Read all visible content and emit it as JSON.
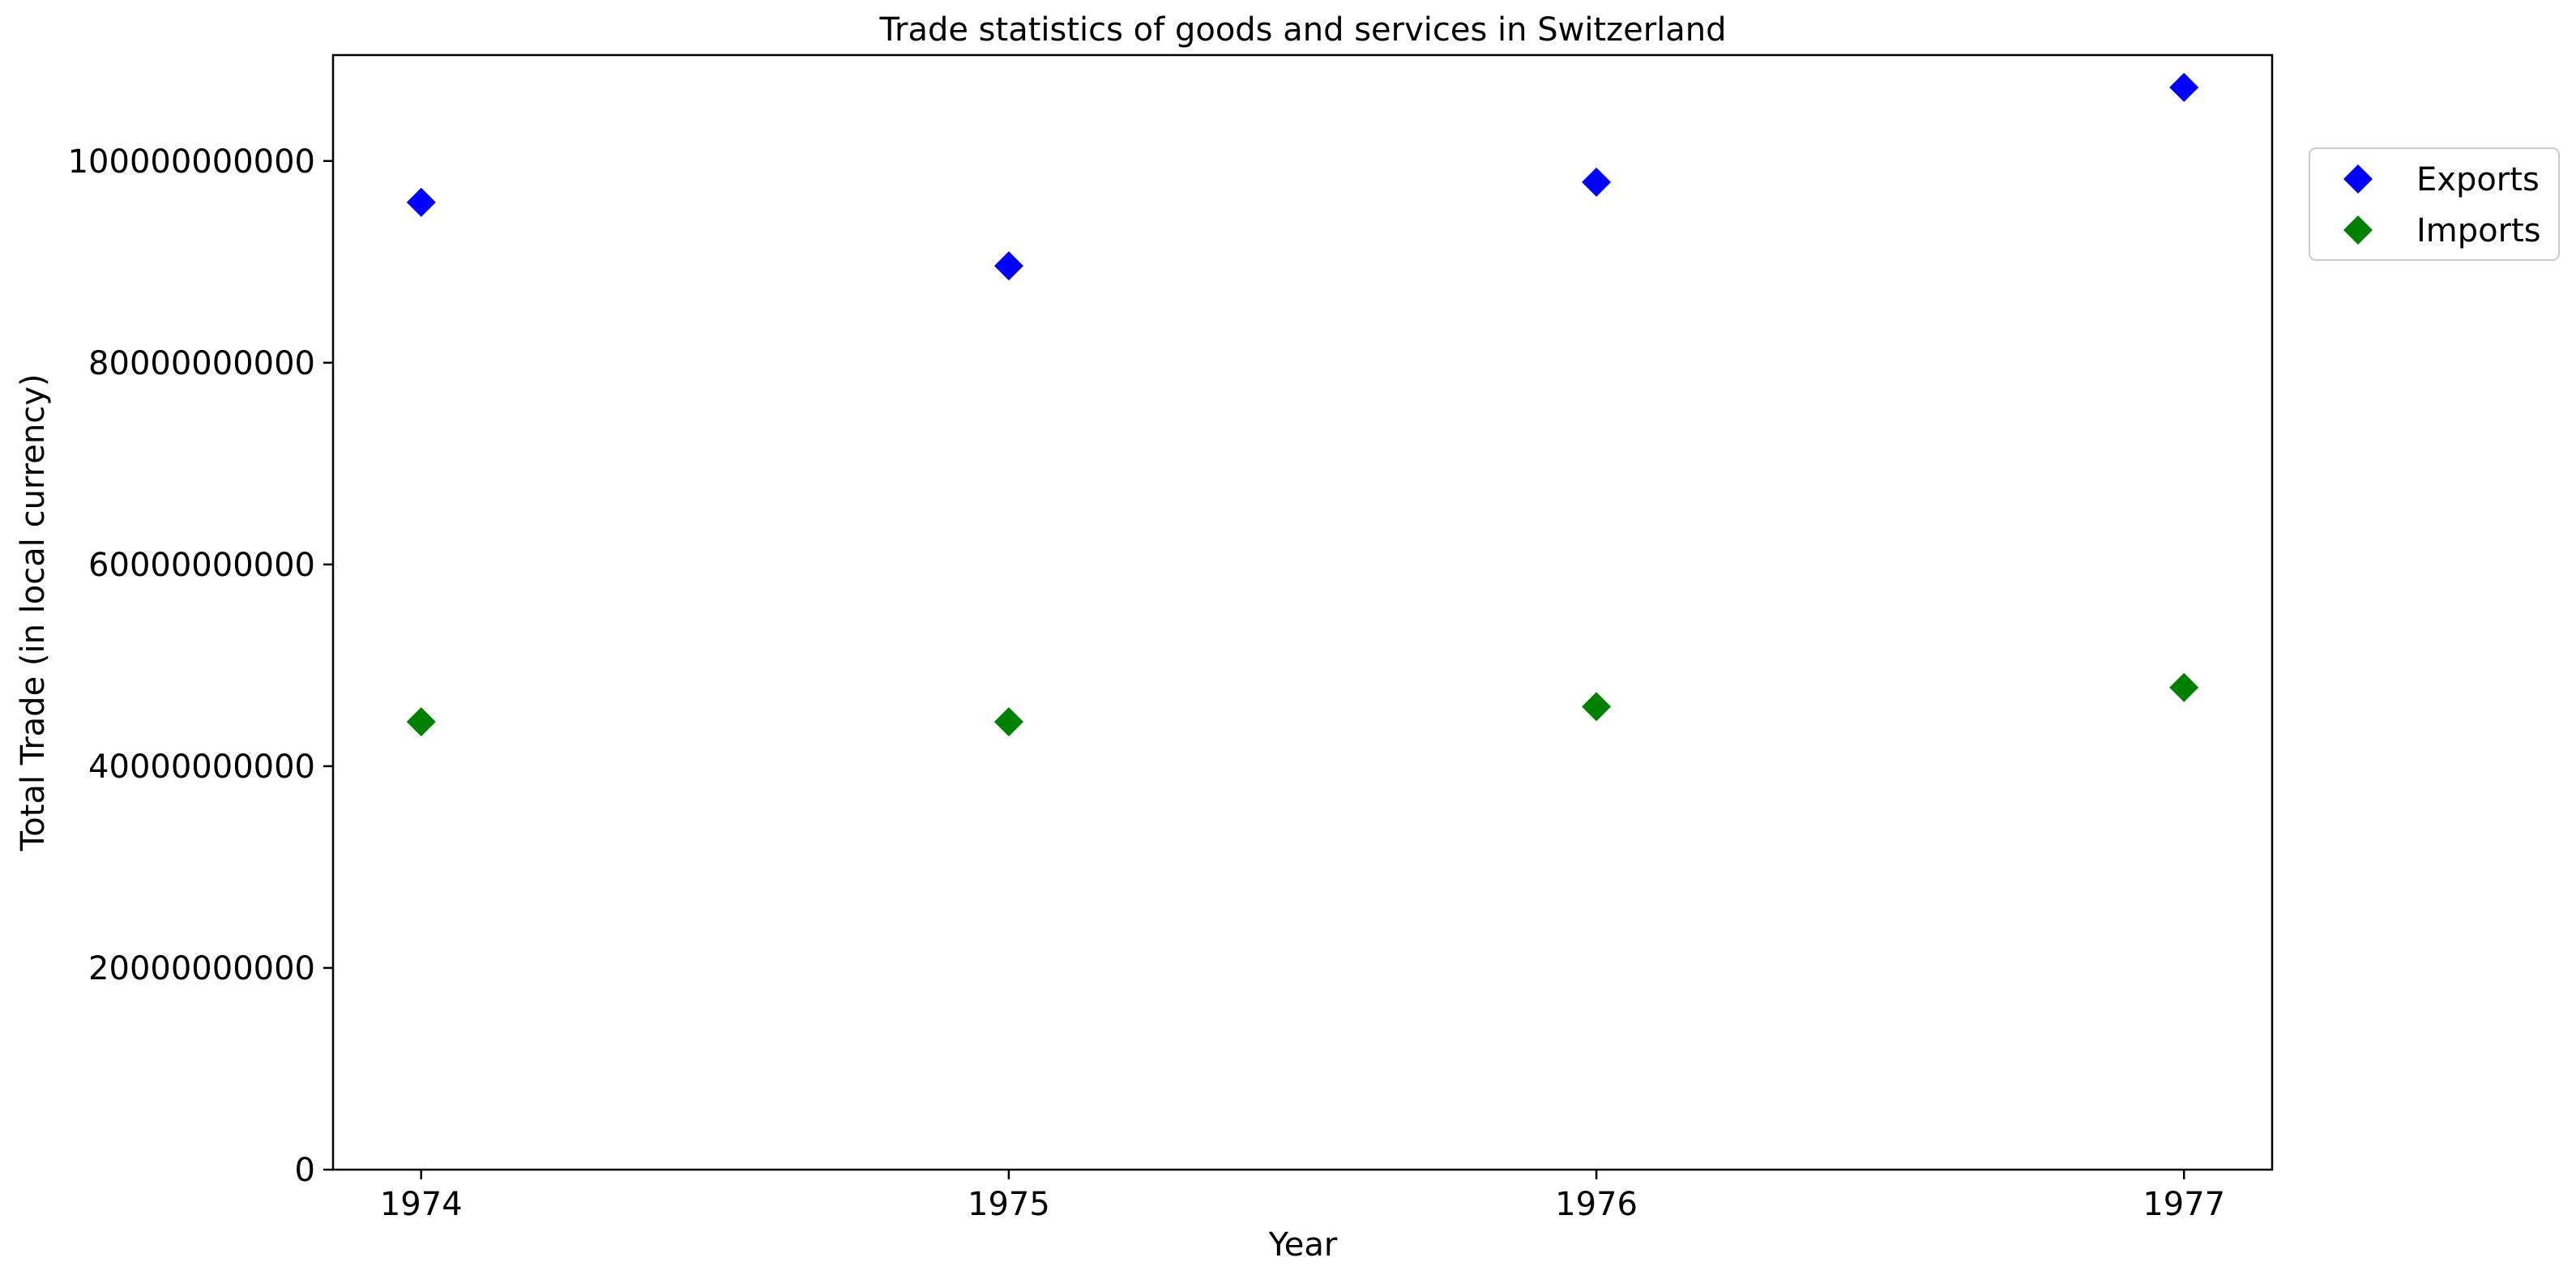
{
  "chart_data": {
    "type": "scatter",
    "title": "Trade statistics of goods and services in Switzerland",
    "xlabel": "Year",
    "ylabel": "Total Trade (in local currency)",
    "x": [
      1974,
      1975,
      1976,
      1977
    ],
    "x_tick_labels": [
      "1974",
      "1975",
      "1976",
      "1977"
    ],
    "xlim": [
      1973.85,
      1977.15
    ],
    "ylim": [
      0,
      110500000000
    ],
    "y_ticks": [
      0,
      20000000000,
      40000000000,
      60000000000,
      80000000000,
      100000000000
    ],
    "y_tick_labels": [
      "0",
      "20000000000",
      "40000000000",
      "60000000000",
      "80000000000",
      "100000000000"
    ],
    "grid": false,
    "legend_position": "outside-top-right",
    "series": [
      {
        "name": "Exports",
        "color": "#0000ff",
        "marker": "diamond",
        "values": [
          95900000000,
          89600000000,
          97900000000,
          107300000000
        ]
      },
      {
        "name": "Imports",
        "color": "#008000",
        "marker": "diamond",
        "values": [
          44400000000,
          44400000000,
          45900000000,
          47800000000
        ]
      }
    ]
  }
}
